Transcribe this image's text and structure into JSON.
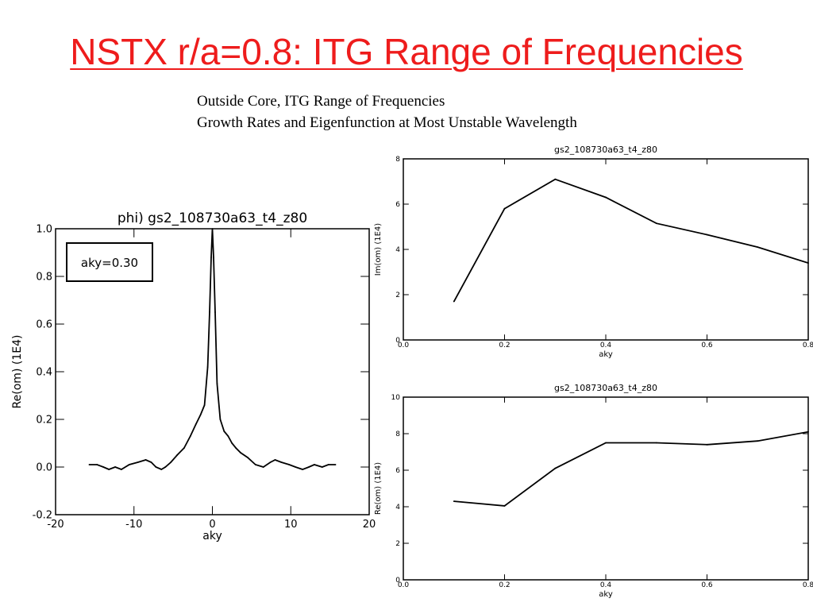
{
  "slide": {
    "title": "NSTX r/a=0.8: ITG Range of Frequencies",
    "subtitle_line1": "Outside Core, ITG Range of Frequencies",
    "subtitle_line2": "Growth Rates and Eigenfunction at Most Unstable Wavelength"
  },
  "colors": {
    "title": "#ee1c1c",
    "line": "#000000"
  },
  "chart_data": [
    {
      "id": "phi",
      "type": "line",
      "title": "phi) gs2_108730a63_t4_z80",
      "xlabel": "aky",
      "ylabel": "Re(om)   (1E4)",
      "annotation": "aky=0.30",
      "xlim": [
        -20,
        20
      ],
      "ylim": [
        -0.2,
        1.0
      ],
      "xticks": [
        -20,
        -10,
        0,
        10,
        20
      ],
      "xtick_labels": [
        "-20",
        "-10",
        "0",
        "10",
        "20"
      ],
      "yticks": [
        -0.2,
        0.0,
        0.2,
        0.4,
        0.6,
        0.8,
        1.0
      ],
      "ytick_labels": [
        "-0.2",
        "0.0",
        "0.2",
        "0.4",
        "0.6",
        "0.8",
        "1.0"
      ],
      "series": [
        {
          "x": [
            -15.7,
            -14.7,
            -13.9,
            -13.2,
            -12.4,
            -11.6,
            -10.6,
            -9.5,
            -8.5,
            -7.8,
            -7.2,
            -6.5,
            -6.0,
            -5.3,
            -4.5,
            -3.6,
            -2.8,
            -2.1,
            -1.5,
            -1.0,
            -0.6,
            -0.35,
            -0.15,
            0.0,
            0.15,
            0.35,
            0.6,
            1.0,
            1.5,
            2.0,
            2.5,
            3.0,
            3.6,
            4.5,
            5.5,
            6.5,
            7.4,
            8.0,
            8.8,
            9.8,
            10.6,
            11.5,
            12.3,
            13.0,
            14.0,
            14.8,
            15.7
          ],
          "y": [
            0.01,
            0.01,
            0.0,
            -0.01,
            0.0,
            -0.01,
            0.01,
            0.02,
            0.03,
            0.02,
            0.0,
            -0.01,
            0.0,
            0.02,
            0.05,
            0.08,
            0.13,
            0.18,
            0.22,
            0.26,
            0.42,
            0.65,
            0.88,
            1.0,
            0.88,
            0.65,
            0.35,
            0.2,
            0.15,
            0.13,
            0.1,
            0.08,
            0.06,
            0.04,
            0.01,
            0.0,
            0.02,
            0.03,
            0.02,
            0.01,
            0.0,
            -0.01,
            0.0,
            0.01,
            0.0,
            0.01,
            0.01
          ]
        }
      ]
    },
    {
      "id": "growth",
      "type": "line",
      "title": "gs2_108730a63_t4_z80",
      "xlabel": "aky",
      "ylabel": "Im(om)   (1E4)",
      "xlim": [
        0.0,
        0.8
      ],
      "ylim": [
        0,
        8
      ],
      "xticks": [
        0.0,
        0.2,
        0.4,
        0.6,
        0.8
      ],
      "xtick_labels": [
        "0.0",
        "0.2",
        "0.4",
        "0.6",
        "0.8"
      ],
      "yticks": [
        0,
        2,
        4,
        6,
        8
      ],
      "ytick_labels": [
        "0",
        "2",
        "4",
        "6",
        "8"
      ],
      "series": [
        {
          "x": [
            0.1,
            0.2,
            0.3,
            0.4,
            0.5,
            0.6,
            0.7,
            0.8
          ],
          "y": [
            1.7,
            5.8,
            7.1,
            6.3,
            5.15,
            4.65,
            4.1,
            3.4
          ]
        }
      ]
    },
    {
      "id": "frequency",
      "type": "line",
      "title": "gs2_108730a63_t4_z80",
      "xlabel": "aky",
      "ylabel": "Re(om)   (1E4)",
      "xlim": [
        0.0,
        0.8
      ],
      "ylim": [
        0,
        10
      ],
      "xticks": [
        0.0,
        0.2,
        0.4,
        0.6,
        0.8
      ],
      "xtick_labels": [
        "0.0",
        "0.2",
        "0.4",
        "0.6",
        "0.8"
      ],
      "yticks": [
        0,
        2,
        4,
        6,
        8,
        10
      ],
      "ytick_labels": [
        "0",
        "2",
        "4",
        "6",
        "8",
        "10"
      ],
      "series": [
        {
          "x": [
            0.1,
            0.2,
            0.3,
            0.4,
            0.5,
            0.6,
            0.7,
            0.8
          ],
          "y": [
            4.3,
            4.05,
            6.1,
            7.5,
            7.5,
            7.4,
            7.6,
            8.1
          ]
        }
      ]
    }
  ]
}
